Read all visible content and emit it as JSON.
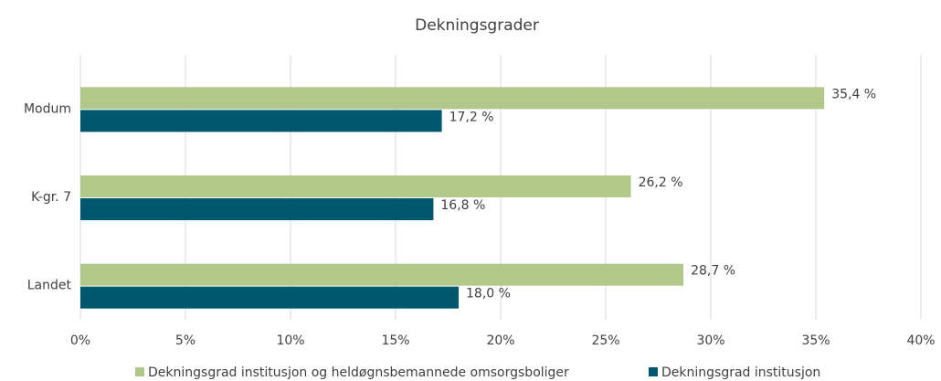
{
  "chart_data": {
    "type": "hbar",
    "title": "Dekningsgrader",
    "categories": [
      "Modum",
      "K-gr. 7",
      "Landet"
    ],
    "series": [
      {
        "name": "Dekningsgrad institusjon og heldøgnsbemannede omsorgsboliger",
        "color": "#b0c98a",
        "values": [
          35.4,
          26.2,
          28.7
        ],
        "value_labels": [
          "35,4 %",
          "26,2 %",
          "28,7 %"
        ]
      },
      {
        "name": "Dekningsgrad institusjon",
        "color": "#00586e",
        "values": [
          17.2,
          16.8,
          18.0
        ],
        "value_labels": [
          "17,2 %",
          "16,8 %",
          "18,0 %"
        ]
      }
    ],
    "xlim": [
      0,
      40
    ],
    "xticks": [
      {
        "value": 0,
        "label": "0%"
      },
      {
        "value": 5,
        "label": "5%"
      },
      {
        "value": 10,
        "label": "10%"
      },
      {
        "value": 15,
        "label": "15%"
      },
      {
        "value": 20,
        "label": "20%"
      },
      {
        "value": 25,
        "label": "25%"
      },
      {
        "value": 30,
        "label": "30%"
      },
      {
        "value": 35,
        "label": "35%"
      },
      {
        "value": 40,
        "label": "40%"
      }
    ],
    "grid": true,
    "legend": "bottom"
  }
}
